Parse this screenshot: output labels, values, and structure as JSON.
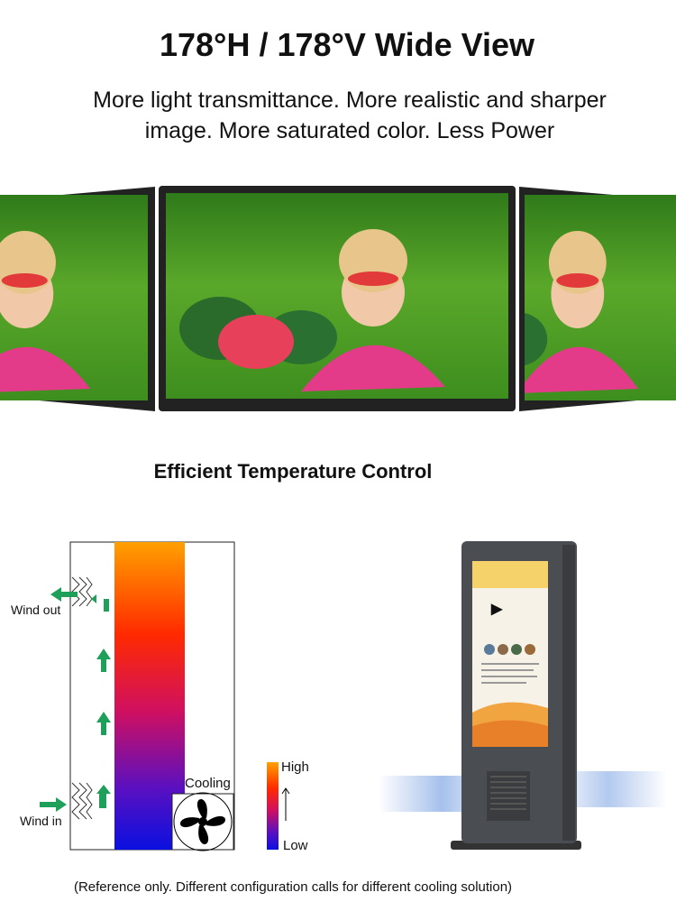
{
  "header": {
    "title": "178°H / 178°V Wide View",
    "subtitle_lines": [
      "More light transmittance. More realistic and sharper",
      "image. More saturated color. Less Power"
    ]
  },
  "cooling": {
    "title": "Efficient Temperature Control",
    "wind_out": "Wind out",
    "wind_in": "Wind in",
    "cooling": "Cooling",
    "high": "High",
    "low": "Low"
  },
  "footnote": "(Reference only. Different configuration calls for different cooling solution)"
}
